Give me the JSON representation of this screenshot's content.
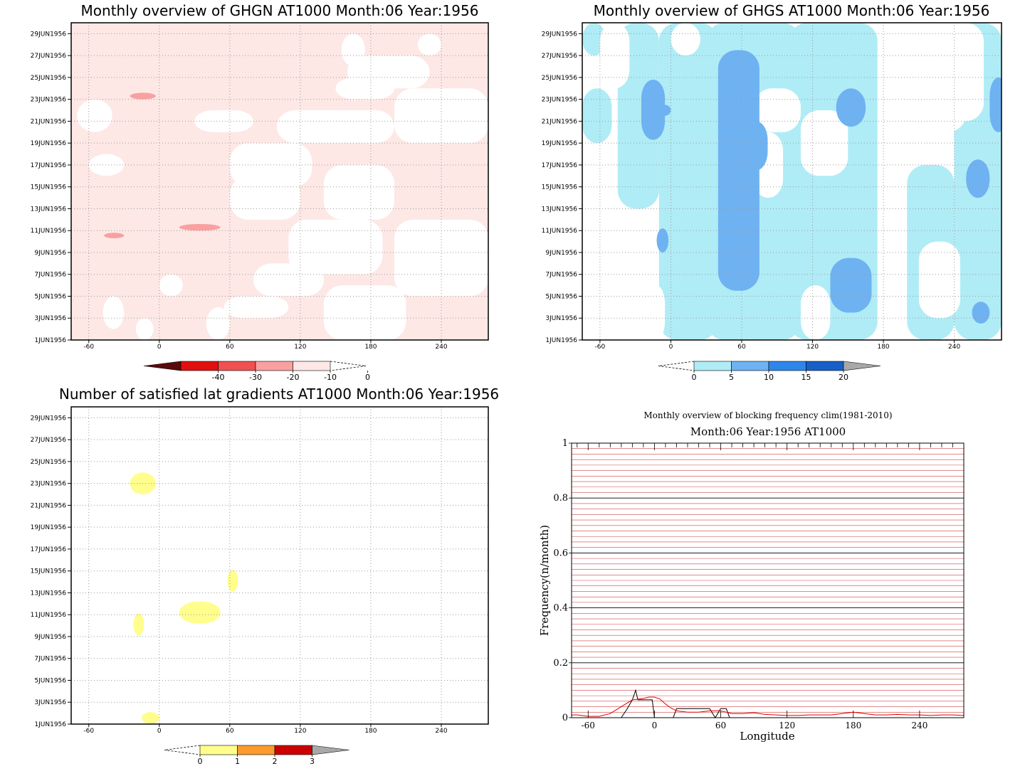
{
  "colors": {
    "pink_light": "#fde8e6",
    "pink_mid": "#f9a0a0",
    "red_mid": "#f05050",
    "red": "#e01010",
    "dark_red": "#5a0a0a",
    "cyan_light": "#b0ecf6",
    "blue_light": "#6fb2f2",
    "blue_mid": "#2e86ea",
    "blue_dark": "#1760c8",
    "yellow": "#fffe8c",
    "orange": "#fc9b2c",
    "crimson": "#cb0000",
    "gray": "#a8a8a8",
    "grid_red": "#d04545",
    "line_black": "#000000",
    "line_red": "#e00000"
  },
  "chart_data": [
    {
      "id": "ghgn",
      "type": "heatmap",
      "title": "Monthly overview of GHGN AT1000 Month:06 Year:1956",
      "x_ticks": [
        "-60",
        "0",
        "60",
        "120",
        "180",
        "240"
      ],
      "y_ticks": [
        "1JUN1956",
        "3JUN1956",
        "5JUN1956",
        "7JUN1956",
        "9JUN1956",
        "11JUN1956",
        "13JUN1956",
        "15JUN1956",
        "17JUN1956",
        "19JUN1956",
        "21JUN1956",
        "23JUN1956",
        "25JUN1956",
        "27JUN1956",
        "29JUN1956"
      ],
      "xlim": [
        -75,
        280
      ],
      "ylim": [
        1,
        30
      ],
      "colorbar": {
        "labels": [
          "-40",
          "-30",
          "-20",
          "-10",
          "0"
        ]
      },
      "fields": [
        {
          "level": "-10 to 0",
          "regions": [
            [
              -75,
              1,
              280,
              30
            ]
          ]
        },
        {
          "level": "-20 to -10",
          "regions": [
            [
              -25,
              23.0,
              -3,
              23.6
            ],
            [
              -47,
              10.3,
              -30,
              10.8
            ],
            [
              17,
              11.0,
              52,
              11.6
            ]
          ]
        }
      ],
      "blank_patches": [
        [
          -48,
          2,
          -30,
          5
        ],
        [
          -20,
          1,
          -5,
          3
        ],
        [
          0,
          5,
          20,
          7
        ],
        [
          40,
          1,
          60,
          4
        ],
        [
          55,
          3,
          110,
          5
        ],
        [
          80,
          5,
          140,
          8
        ],
        [
          110,
          7,
          190,
          12
        ],
        [
          140,
          1,
          210,
          6
        ],
        [
          200,
          5,
          280,
          12
        ],
        [
          60,
          12,
          120,
          16
        ],
        [
          60,
          15,
          130,
          19
        ],
        [
          100,
          19,
          200,
          22
        ],
        [
          200,
          19,
          280,
          24
        ],
        [
          140,
          12,
          200,
          17
        ],
        [
          160,
          24,
          230,
          27
        ],
        [
          155,
          26,
          175,
          29
        ],
        [
          220,
          27,
          240,
          29
        ],
        [
          -70,
          20,
          -40,
          23
        ],
        [
          150,
          23,
          200,
          25
        ],
        [
          30,
          20,
          80,
          22
        ],
        [
          -60,
          16,
          -30,
          18
        ]
      ]
    },
    {
      "id": "ghgs",
      "type": "heatmap",
      "title": "Monthly overview of GHGS AT1000 Month:06 Year:1956",
      "x_ticks": [
        "-60",
        "0",
        "60",
        "120",
        "180",
        "240"
      ],
      "y_ticks": [
        "1JUN1956",
        "3JUN1956",
        "5JUN1956",
        "7JUN1956",
        "9JUN1956",
        "11JUN1956",
        "13JUN1956",
        "15JUN1956",
        "17JUN1956",
        "19JUN1956",
        "21JUN1956",
        "23JUN1956",
        "25JUN1956",
        "27JUN1956",
        "29JUN1956"
      ],
      "xlim": [
        -75,
        280
      ],
      "ylim": [
        1,
        30
      ],
      "colorbar": {
        "labels": [
          "0",
          "5",
          "10",
          "15",
          "20"
        ]
      },
      "fields": [
        {
          "level": "0 to 5",
          "regions": [
            [
              -45,
              13,
              -10,
              30
            ],
            [
              -10,
              1,
              40,
              30
            ],
            [
              30,
              1,
              110,
              30
            ],
            [
              100,
              1,
              175,
              30
            ],
            [
              200,
              1,
              240,
              17
            ],
            [
              240,
              1,
              280,
              30
            ],
            [
              -75,
              19,
              -50,
              24
            ],
            [
              -75,
              27,
              -55,
              30
            ]
          ]
        },
        {
          "level": "5 to 10",
          "regions": [
            [
              -25,
              19.3,
              -5,
              24.8
            ],
            [
              -12,
              9.0,
              -2,
              11.2
            ],
            [
              40,
              5.5,
              75,
              27.5
            ],
            [
              135,
              3.5,
              170,
              8.5
            ],
            [
              62,
              16.5,
              82,
              21
            ],
            [
              270,
              20,
              285,
              25
            ],
            [
              250,
              14,
              270,
              17.5
            ],
            [
              255,
              2.5,
              270,
              4.5
            ],
            [
              140,
              20.5,
              165,
              24
            ],
            [
              -10,
              21.5,
              0,
              22.5
            ]
          ]
        }
      ],
      "blank_patches": [
        [
          -75,
          1,
          -30,
          12
        ],
        [
          -75,
          12,
          -55,
          18
        ],
        [
          -45,
          9,
          -20,
          12
        ],
        [
          -20,
          1,
          -5,
          6
        ],
        [
          70,
          14,
          95,
          20
        ],
        [
          110,
          16,
          150,
          22
        ],
        [
          110,
          1,
          135,
          6
        ],
        [
          175,
          1,
          195,
          30
        ],
        [
          230,
          21,
          265,
          30
        ],
        [
          210,
          20,
          250,
          28
        ],
        [
          -60,
          24,
          -35,
          30
        ],
        [
          0,
          27,
          25,
          30
        ],
        [
          70,
          20,
          110,
          24
        ],
        [
          210,
          3,
          245,
          10
        ]
      ]
    },
    {
      "id": "gradients",
      "type": "heatmap",
      "title": "Number of satisfied lat gradients AT1000 Month:06 Year:1956",
      "x_ticks": [
        "-60",
        "0",
        "60",
        "120",
        "180",
        "240"
      ],
      "y_ticks": [
        "1JUN1956",
        "3JUN1956",
        "5JUN1956",
        "7JUN1956",
        "9JUN1956",
        "11JUN1956",
        "13JUN1956",
        "15JUN1956",
        "17JUN1956",
        "19JUN1956",
        "21JUN1956",
        "23JUN1956",
        "25JUN1956",
        "27JUN1956",
        "29JUN1956"
      ],
      "xlim": [
        -75,
        280
      ],
      "ylim": [
        1,
        30
      ],
      "colorbar": {
        "labels": [
          "0",
          "1",
          "2",
          "3"
        ]
      },
      "fields": [
        {
          "level": "0 to 1",
          "regions": [
            [
              -25,
              22,
              -3,
              24
            ],
            [
              17,
              10.2,
              52,
              12.2
            ],
            [
              -22,
              9.1,
              -13,
              11.1
            ],
            [
              58,
              13.1,
              67,
              15.1
            ],
            [
              -15,
              1,
              0,
              2.1
            ]
          ]
        }
      ]
    },
    {
      "id": "blocking",
      "type": "line",
      "title": "Monthly overview of blocking frequency clim(1981-2010)",
      "subtitle": "Month:06 Year:1956  AT1000",
      "xlabel": "Longitude",
      "ylabel": "Frequency(n/month)",
      "xlim": [
        -75,
        280
      ],
      "ylim": [
        0,
        1
      ],
      "x_ticks": [
        "-60",
        "0",
        "60",
        "120",
        "180",
        "240"
      ],
      "y_ticks": [
        "0",
        "0.2",
        "0.4",
        "0.6",
        "0.8",
        "1"
      ],
      "series": [
        {
          "color": "#000000",
          "x": [
            -75,
            -40,
            -35,
            -30,
            -25,
            -20,
            -17,
            -15,
            -10,
            -5,
            -2,
            0,
            3,
            15,
            17,
            20,
            40,
            50,
            55,
            60,
            62,
            65,
            68,
            70,
            75,
            280
          ],
          "y": [
            0,
            0,
            0,
            0,
            0.03,
            0.065,
            0.1,
            0.065,
            0.065,
            0.065,
            0.065,
            0,
            0,
            0,
            0,
            0.033,
            0.033,
            0.033,
            0,
            0.033,
            0.033,
            0.033,
            0,
            0,
            0,
            0
          ]
        },
        {
          "color": "#e00000",
          "x": [
            -75,
            -70,
            -60,
            -50,
            -40,
            -30,
            -20,
            -10,
            -5,
            0,
            5,
            10,
            15,
            20,
            30,
            40,
            50,
            60,
            70,
            80,
            90,
            100,
            110,
            120,
            130,
            140,
            150,
            160,
            170,
            180,
            190,
            200,
            210,
            220,
            230,
            240,
            250,
            260,
            270,
            280
          ],
          "y": [
            0.01,
            0.01,
            0.005,
            0.005,
            0.015,
            0.04,
            0.065,
            0.07,
            0.075,
            0.075,
            0.068,
            0.05,
            0.035,
            0.025,
            0.02,
            0.02,
            0.025,
            0.025,
            0.015,
            0.015,
            0.018,
            0.012,
            0.01,
            0.008,
            0.008,
            0.01,
            0.01,
            0.01,
            0.015,
            0.02,
            0.015,
            0.01,
            0.01,
            0.012,
            0.01,
            0.01,
            0.008,
            0.01,
            0.01,
            0.008
          ]
        }
      ]
    }
  ]
}
